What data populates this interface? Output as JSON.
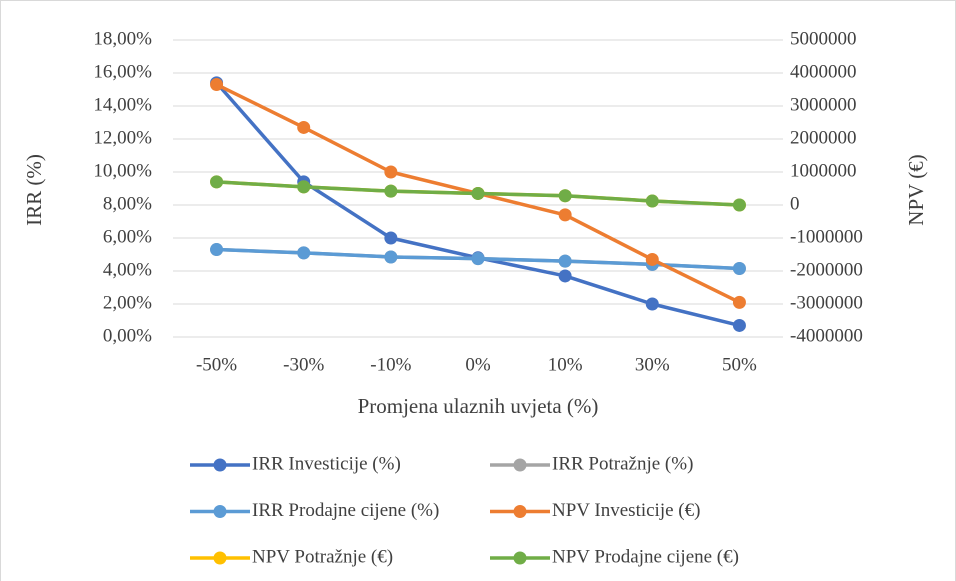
{
  "chart_data": {
    "type": "line",
    "x_label": "Promjena ulaznih uvjeta (%)",
    "y_label": "IRR (%)",
    "y2_label": "NPV (€)",
    "categories": [
      "-50%",
      "-30%",
      "-10%",
      "0%",
      "10%",
      "30%",
      "50%"
    ],
    "ylim": [
      0,
      18
    ],
    "yticks": [
      {
        "value": 0,
        "label": "0,00%"
      },
      {
        "value": 2,
        "label": "2,00%"
      },
      {
        "value": 4,
        "label": "4,00%"
      },
      {
        "value": 6,
        "label": "6,00%"
      },
      {
        "value": 8,
        "label": "8,00%"
      },
      {
        "value": 10,
        "label": "10,00%"
      },
      {
        "value": 12,
        "label": "12,00%"
      },
      {
        "value": 14,
        "label": "14,00%"
      },
      {
        "value": 16,
        "label": "16,00%"
      },
      {
        "value": 18,
        "label": "18,00%"
      }
    ],
    "y2lim": [
      -4000000,
      5000000
    ],
    "y2ticks": [
      -4000000,
      -3000000,
      -2000000,
      -1000000,
      0,
      1000000,
      2000000,
      3000000,
      4000000,
      5000000
    ],
    "grid": true,
    "legend": "bottom",
    "series": [
      {
        "name": "IRR Investicije (%)",
        "color": "#4472c4",
        "axis": "y",
        "values": [
          15.4,
          9.4,
          6.0,
          4.8,
          3.7,
          2.0,
          0.7
        ]
      },
      {
        "name": "IRR Potražnje (%)",
        "color": "#a5a5a5",
        "axis": "y",
        "values": [
          5.3,
          5.1,
          4.85,
          4.75,
          4.6,
          4.4,
          4.15
        ]
      },
      {
        "name": "IRR Prodajne cijene (%)",
        "color": "#5b9bd5",
        "axis": "y",
        "values": [
          5.3,
          5.1,
          4.85,
          4.75,
          4.6,
          4.4,
          4.15
        ]
      },
      {
        "name": "NPV Investicije (€)",
        "color": "#ed7d31",
        "axis": "y2",
        "values": [
          3650000,
          2350000,
          1000000,
          350000,
          -300000,
          -1650000,
          -2950000
        ]
      },
      {
        "name": "NPV Potražnje (€)",
        "color": "#ffc000",
        "axis": "y2",
        "values": [
          700000,
          550000,
          420000,
          350000,
          280000,
          120000,
          0
        ]
      },
      {
        "name": "NPV Prodajne cijene (€)",
        "color": "#70ad47",
        "axis": "y2",
        "values": [
          700000,
          550000,
          420000,
          350000,
          280000,
          120000,
          0
        ]
      }
    ]
  }
}
